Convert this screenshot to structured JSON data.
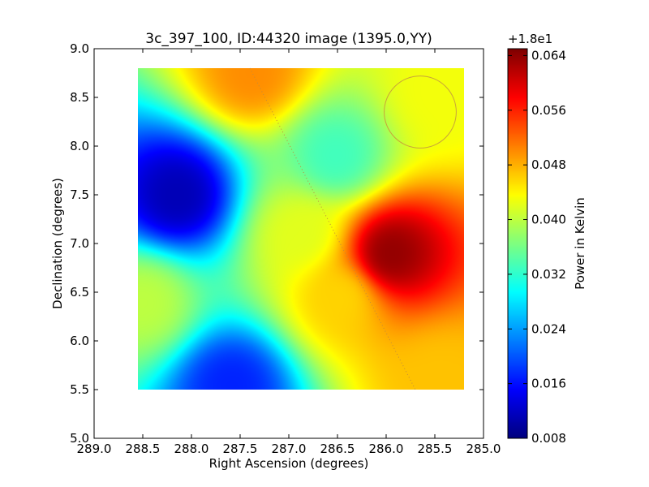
{
  "chart_data": {
    "type": "heatmap",
    "title": "3c_397_100, ID:44320 image (1395.0,YY)",
    "xlabel": "Right Ascension (degrees)",
    "ylabel": "Declination (degrees)",
    "xlim": [
      289.0,
      285.0
    ],
    "ylim": [
      5.0,
      9.0
    ],
    "xticks": [
      "289.0",
      "288.5",
      "288.0",
      "287.5",
      "287.0",
      "286.5",
      "286.0",
      "285.5",
      "285.0"
    ],
    "yticks": [
      "9.0",
      "8.5",
      "8.0",
      "7.5",
      "7.0",
      "6.5",
      "6.0",
      "5.5",
      "5.0"
    ],
    "data_extent": {
      "ra": [
        288.55,
        285.2
      ],
      "dec": [
        5.5,
        8.8
      ]
    },
    "colormap": "jet",
    "colorbar": {
      "label": "Power in Kelvin",
      "offset_label": "+1.8e1",
      "range": [
        0.008,
        0.065
      ],
      "ticks": [
        "0.064",
        "0.056",
        "0.048",
        "0.040",
        "0.032",
        "0.024",
        "0.016",
        "0.008"
      ]
    },
    "field_features": [
      {
        "ra": 288.15,
        "dec": 7.5,
        "value": 0.011,
        "feature": "minimum"
      },
      {
        "ra": 287.6,
        "dec": 5.55,
        "value": 0.017,
        "feature": "minimum"
      },
      {
        "ra": 286.0,
        "dec": 6.9,
        "value": 0.064,
        "feature": "maximum"
      },
      {
        "ra": 286.9,
        "dec": 7.1,
        "value": 0.042,
        "feature": "local"
      },
      {
        "ra": 287.4,
        "dec": 8.75,
        "value": 0.05,
        "feature": "local"
      },
      {
        "ra": 286.55,
        "dec": 7.9,
        "value": 0.033,
        "feature": "local"
      },
      {
        "ra": 286.5,
        "dec": 6.45,
        "value": 0.046,
        "feature": "local"
      },
      {
        "ra": 288.5,
        "dec": 6.4,
        "value": 0.04,
        "feature": "local"
      },
      {
        "ra": 285.5,
        "dec": 8.55,
        "value": 0.043,
        "feature": "local"
      },
      {
        "ra": 285.5,
        "dec": 5.6,
        "value": 0.047,
        "feature": "local"
      }
    ],
    "beam_circle": {
      "ra": 285.65,
      "dec": 8.35,
      "radius_deg": 0.37
    },
    "galactic_plane_line": [
      [
        287.4,
        8.8
      ],
      [
        285.7,
        5.5
      ]
    ]
  }
}
